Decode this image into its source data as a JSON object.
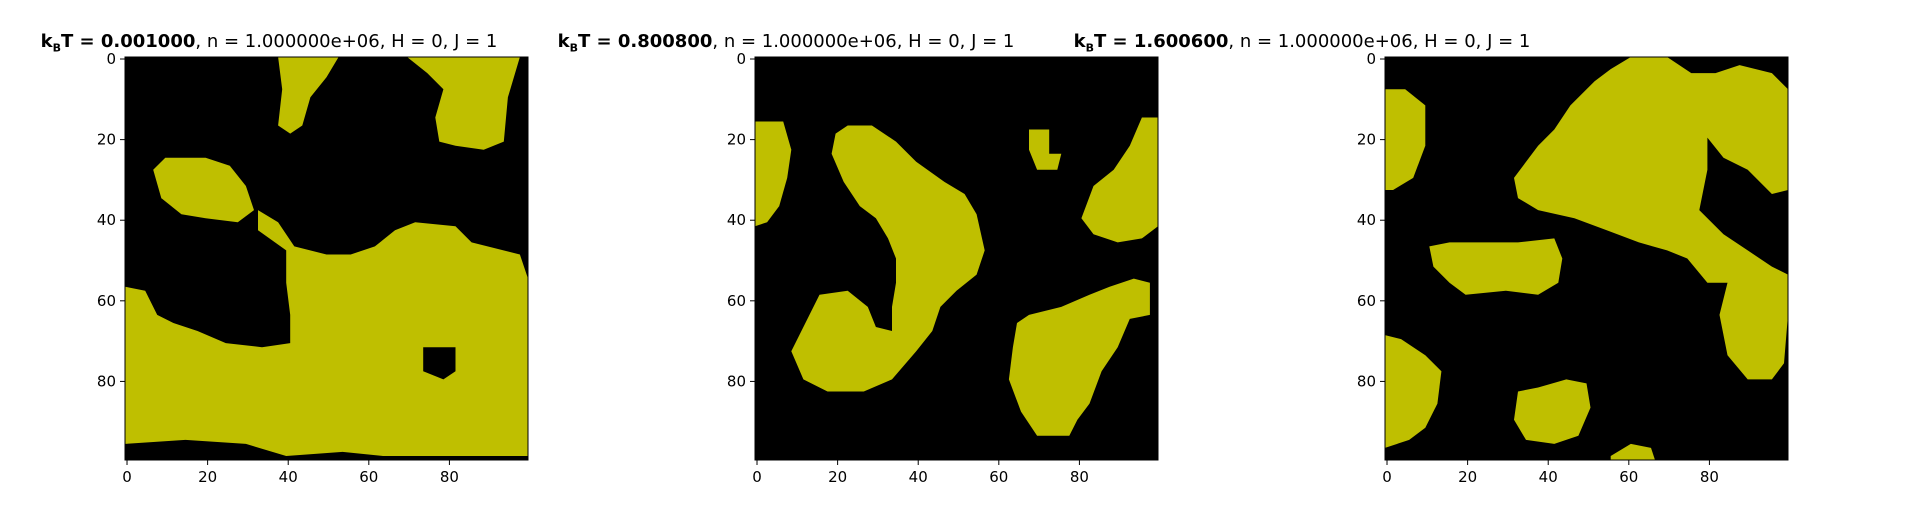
{
  "figure": {
    "colors": {
      "spin_down": "#000000",
      "spin_up": "#bfbf00",
      "axes": "#000000"
    }
  },
  "chart_data": [
    {
      "type": "heatmap",
      "title": {
        "T_prefix": "k",
        "T_sub": "B",
        "T_suffix": "T = 0.001000",
        "rest": ", n = 1.000000e+06, H = 0, J = 1"
      },
      "xticks": [
        "0",
        "20",
        "40",
        "60",
        "80"
      ],
      "yticks": [
        "0",
        "20",
        "40",
        "60",
        "80"
      ],
      "xlim": [
        0,
        100
      ],
      "ylim": [
        100,
        0
      ],
      "grid_size": 100,
      "up_regions": [
        [
          [
            38,
            0
          ],
          [
            53,
            0
          ],
          [
            50,
            5
          ],
          [
            46,
            10
          ],
          [
            44,
            17
          ],
          [
            41,
            19
          ],
          [
            38,
            17
          ],
          [
            39,
            8
          ]
        ],
        [
          [
            70,
            0
          ],
          [
            98,
            0
          ],
          [
            95,
            10
          ],
          [
            94,
            21
          ],
          [
            89,
            23
          ],
          [
            82,
            22
          ],
          [
            78,
            21
          ],
          [
            77,
            15
          ],
          [
            79,
            8
          ],
          [
            75,
            4
          ]
        ],
        [
          [
            7,
            28
          ],
          [
            10,
            25
          ],
          [
            20,
            25
          ],
          [
            26,
            27
          ],
          [
            30,
            32
          ],
          [
            32,
            38
          ],
          [
            28,
            41
          ],
          [
            20,
            40
          ],
          [
            14,
            39
          ],
          [
            9,
            35
          ]
        ],
        [
          [
            0,
            57
          ],
          [
            5,
            58
          ],
          [
            8,
            64
          ],
          [
            12,
            66
          ],
          [
            18,
            68
          ],
          [
            25,
            71
          ],
          [
            34,
            72
          ],
          [
            41,
            71
          ],
          [
            41,
            64
          ],
          [
            40,
            56
          ],
          [
            40,
            48
          ],
          [
            33,
            43
          ],
          [
            33,
            38
          ],
          [
            38,
            41
          ],
          [
            42,
            47
          ],
          [
            50,
            49
          ],
          [
            56,
            49
          ],
          [
            62,
            47
          ],
          [
            67,
            43
          ],
          [
            72,
            41
          ],
          [
            82,
            42
          ],
          [
            86,
            46
          ],
          [
            98,
            49
          ],
          [
            100,
            55
          ],
          [
            100,
            99
          ],
          [
            64,
            99
          ],
          [
            54,
            98
          ],
          [
            40,
            99
          ],
          [
            30,
            96
          ],
          [
            15,
            95
          ],
          [
            0,
            96
          ]
        ]
      ],
      "down_regions": [
        [
          [
            74,
            72
          ],
          [
            82,
            72
          ],
          [
            82,
            78
          ],
          [
            79,
            80
          ],
          [
            74,
            78
          ]
        ]
      ]
    },
    {
      "type": "heatmap",
      "title": {
        "T_prefix": "k",
        "T_sub": "B",
        "T_suffix": "T = 0.800800",
        "rest": ", n = 1.000000e+06, H = 0, J = 1"
      },
      "xticks": [
        "0",
        "20",
        "40",
        "60",
        "80"
      ],
      "yticks": [
        "0",
        "20",
        "40",
        "60",
        "80"
      ],
      "xlim": [
        0,
        100
      ],
      "ylim": [
        100,
        0
      ],
      "grid_size": 100,
      "up_regions": [
        [
          [
            0,
            16
          ],
          [
            7,
            16
          ],
          [
            9,
            23
          ],
          [
            8,
            30
          ],
          [
            6,
            37
          ],
          [
            3,
            41
          ],
          [
            0,
            42
          ]
        ],
        [
          [
            20,
            19
          ],
          [
            23,
            17
          ],
          [
            29,
            17
          ],
          [
            35,
            21
          ],
          [
            40,
            26
          ],
          [
            47,
            31
          ],
          [
            52,
            34
          ],
          [
            55,
            39
          ],
          [
            57,
            48
          ],
          [
            55,
            54
          ],
          [
            50,
            58
          ],
          [
            46,
            62
          ],
          [
            44,
            68
          ],
          [
            40,
            73
          ],
          [
            34,
            80
          ],
          [
            27,
            83
          ],
          [
            18,
            83
          ],
          [
            12,
            80
          ],
          [
            9,
            73
          ],
          [
            12,
            67
          ],
          [
            16,
            59
          ],
          [
            23,
            58
          ],
          [
            28,
            62
          ],
          [
            30,
            67
          ],
          [
            34,
            68
          ],
          [
            34,
            62
          ],
          [
            35,
            56
          ],
          [
            35,
            50
          ],
          [
            33,
            45
          ],
          [
            30,
            40
          ],
          [
            26,
            37
          ],
          [
            22,
            31
          ],
          [
            19,
            24
          ]
        ],
        [
          [
            68,
            18
          ],
          [
            73,
            18
          ],
          [
            73,
            24
          ],
          [
            76,
            24
          ],
          [
            75,
            28
          ],
          [
            70,
            28
          ],
          [
            68,
            23
          ]
        ],
        [
          [
            81,
            40
          ],
          [
            84,
            32
          ],
          [
            89,
            28
          ],
          [
            93,
            22
          ],
          [
            96,
            15
          ],
          [
            100,
            15
          ],
          [
            100,
            42
          ],
          [
            96,
            45
          ],
          [
            90,
            46
          ],
          [
            84,
            44
          ]
        ],
        [
          [
            65,
            66
          ],
          [
            68,
            64
          ],
          [
            76,
            62
          ],
          [
            83,
            59
          ],
          [
            88,
            57
          ],
          [
            94,
            55
          ],
          [
            98,
            56
          ],
          [
            98,
            64
          ],
          [
            93,
            65
          ],
          [
            90,
            72
          ],
          [
            86,
            78
          ],
          [
            83,
            86
          ],
          [
            80,
            90
          ],
          [
            78,
            94
          ],
          [
            70,
            94
          ],
          [
            66,
            88
          ],
          [
            63,
            80
          ],
          [
            64,
            72
          ]
        ]
      ],
      "down_regions": []
    },
    {
      "type": "heatmap",
      "title": {
        "T_prefix": "k",
        "T_sub": "B",
        "T_suffix": "T = 1.600600",
        "rest": ", n = 1.000000e+06, H = 0, J = 1"
      },
      "xticks": [
        "0",
        "20",
        "40",
        "60",
        "80"
      ],
      "yticks": [
        "0",
        "20",
        "40",
        "60",
        "80"
      ],
      "xlim": [
        0,
        100
      ],
      "ylim": [
        100,
        0
      ],
      "grid_size": 100,
      "up_regions": [
        [
          [
            0,
            8
          ],
          [
            5,
            8
          ],
          [
            10,
            12
          ],
          [
            10,
            22
          ],
          [
            7,
            30
          ],
          [
            2,
            33
          ],
          [
            0,
            33
          ]
        ],
        [
          [
            32,
            30
          ],
          [
            38,
            22
          ],
          [
            42,
            18
          ],
          [
            46,
            12
          ],
          [
            52,
            6
          ],
          [
            56,
            3
          ],
          [
            61,
            0
          ],
          [
            70,
            0
          ],
          [
            76,
            4
          ],
          [
            82,
            4
          ],
          [
            88,
            2
          ],
          [
            96,
            4
          ],
          [
            100,
            8
          ],
          [
            100,
            33
          ],
          [
            96,
            34
          ],
          [
            90,
            28
          ],
          [
            84,
            25
          ],
          [
            80,
            20
          ],
          [
            80,
            28
          ],
          [
            78,
            38
          ],
          [
            84,
            44
          ],
          [
            90,
            48
          ],
          [
            96,
            52
          ],
          [
            100,
            54
          ],
          [
            100,
            64
          ],
          [
            99,
            76
          ],
          [
            96,
            80
          ],
          [
            90,
            80
          ],
          [
            85,
            74
          ],
          [
            83,
            64
          ],
          [
            85,
            56
          ],
          [
            80,
            56
          ],
          [
            75,
            50
          ],
          [
            70,
            48
          ],
          [
            63,
            46
          ],
          [
            55,
            43
          ],
          [
            47,
            40
          ],
          [
            38,
            38
          ],
          [
            33,
            35
          ]
        ],
        [
          [
            11,
            47
          ],
          [
            16,
            46
          ],
          [
            26,
            46
          ],
          [
            33,
            46
          ],
          [
            42,
            45
          ],
          [
            44,
            50
          ],
          [
            43,
            56
          ],
          [
            38,
            59
          ],
          [
            30,
            58
          ],
          [
            20,
            59
          ],
          [
            16,
            56
          ],
          [
            12,
            52
          ]
        ],
        [
          [
            0,
            69
          ],
          [
            4,
            70
          ],
          [
            10,
            74
          ],
          [
            14,
            78
          ],
          [
            13,
            86
          ],
          [
            10,
            92
          ],
          [
            6,
            95
          ],
          [
            0,
            97
          ]
        ],
        [
          [
            33,
            83
          ],
          [
            38,
            82
          ],
          [
            45,
            80
          ],
          [
            50,
            81
          ],
          [
            51,
            87
          ],
          [
            48,
            94
          ],
          [
            42,
            96
          ],
          [
            35,
            95
          ],
          [
            32,
            90
          ]
        ],
        [
          [
            56,
            99
          ],
          [
            61,
            96
          ],
          [
            66,
            97
          ],
          [
            67,
            100
          ],
          [
            56,
            100
          ]
        ]
      ],
      "down_regions": []
    }
  ]
}
